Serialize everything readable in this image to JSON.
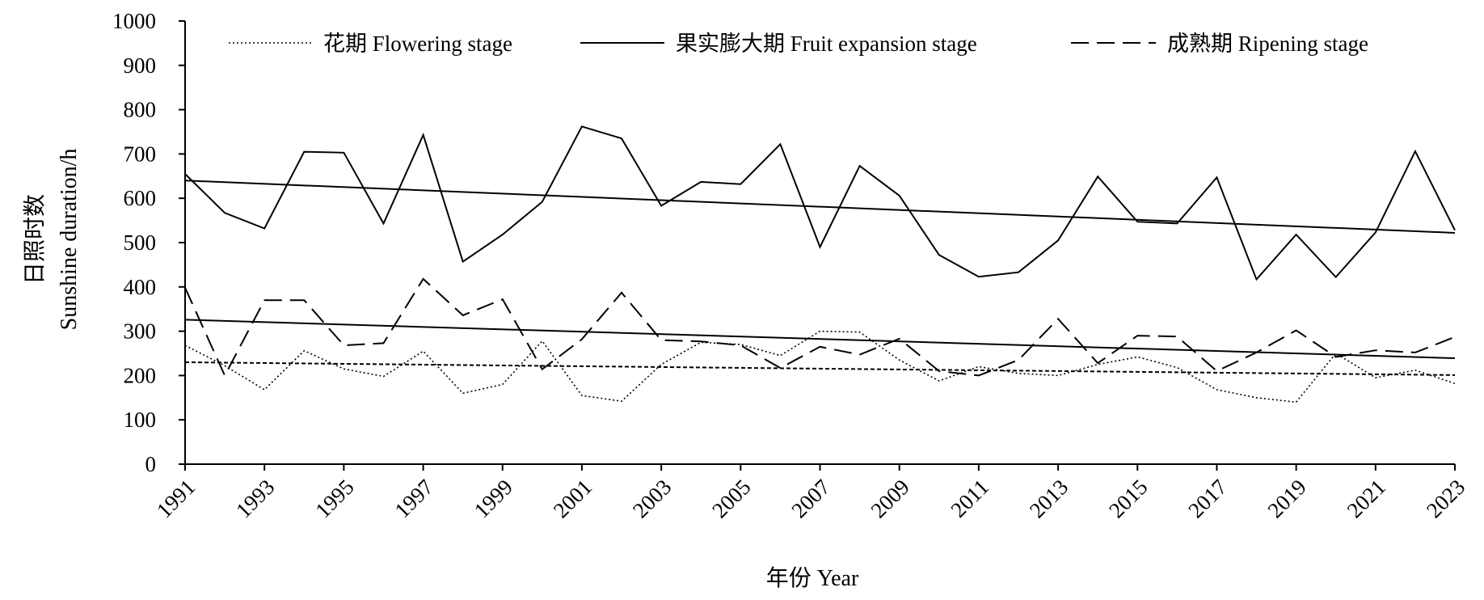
{
  "chart_data": {
    "type": "line",
    "title": "",
    "xlabel": "年份 Year",
    "ylabel_cn": "日照时数",
    "ylabel_en": "Sunshine duration/h",
    "xlim": [
      1991,
      2023
    ],
    "ylim": [
      0,
      1000
    ],
    "y_ticks": [
      0,
      100,
      200,
      300,
      400,
      500,
      600,
      700,
      800,
      900,
      1000
    ],
    "x_ticks": [
      1991,
      1993,
      1995,
      1997,
      1999,
      2001,
      2003,
      2005,
      2007,
      2009,
      2011,
      2013,
      2015,
      2017,
      2019,
      2021,
      2023
    ],
    "grid": false,
    "legend_position": "top",
    "x": [
      1991,
      1992,
      1993,
      1994,
      1995,
      1996,
      1997,
      1998,
      1999,
      2000,
      2001,
      2002,
      2003,
      2004,
      2005,
      2006,
      2007,
      2008,
      2009,
      2010,
      2011,
      2012,
      2013,
      2014,
      2015,
      2016,
      2017,
      2018,
      2019,
      2020,
      2021,
      2022,
      2023
    ],
    "series": [
      {
        "name": "花期 Flowering stage",
        "style": "dotted",
        "values": [
          268,
          222,
          168,
          256,
          215,
          198,
          255,
          160,
          180,
          278,
          155,
          142,
          225,
          275,
          270,
          245,
          300,
          298,
          235,
          188,
          220,
          205,
          200,
          225,
          242,
          218,
          168,
          150,
          140,
          250,
          195,
          212,
          182
        ],
        "trend": [
          230,
          201
        ]
      },
      {
        "name": "果实膨大期 Fruit expansion stage",
        "style": "solid",
        "values": [
          655,
          567,
          532,
          705,
          703,
          543,
          743,
          457,
          518,
          592,
          762,
          735,
          583,
          637,
          632,
          722,
          490,
          673,
          606,
          472,
          423,
          433,
          505,
          649,
          547,
          543,
          647,
          417,
          518,
          422,
          523,
          706,
          528
        ],
        "trend": [
          640,
          522
        ]
      },
      {
        "name": "成熟期 Ripening stage",
        "style": "dashed",
        "values": [
          398,
          200,
          370,
          370,
          268,
          273,
          418,
          336,
          372,
          214,
          282,
          387,
          280,
          277,
          268,
          217,
          265,
          247,
          283,
          210,
          200,
          235,
          328,
          228,
          290,
          288,
          210,
          252,
          302,
          242,
          257,
          252,
          287
        ],
        "trend": [
          326,
          239
        ]
      }
    ]
  }
}
